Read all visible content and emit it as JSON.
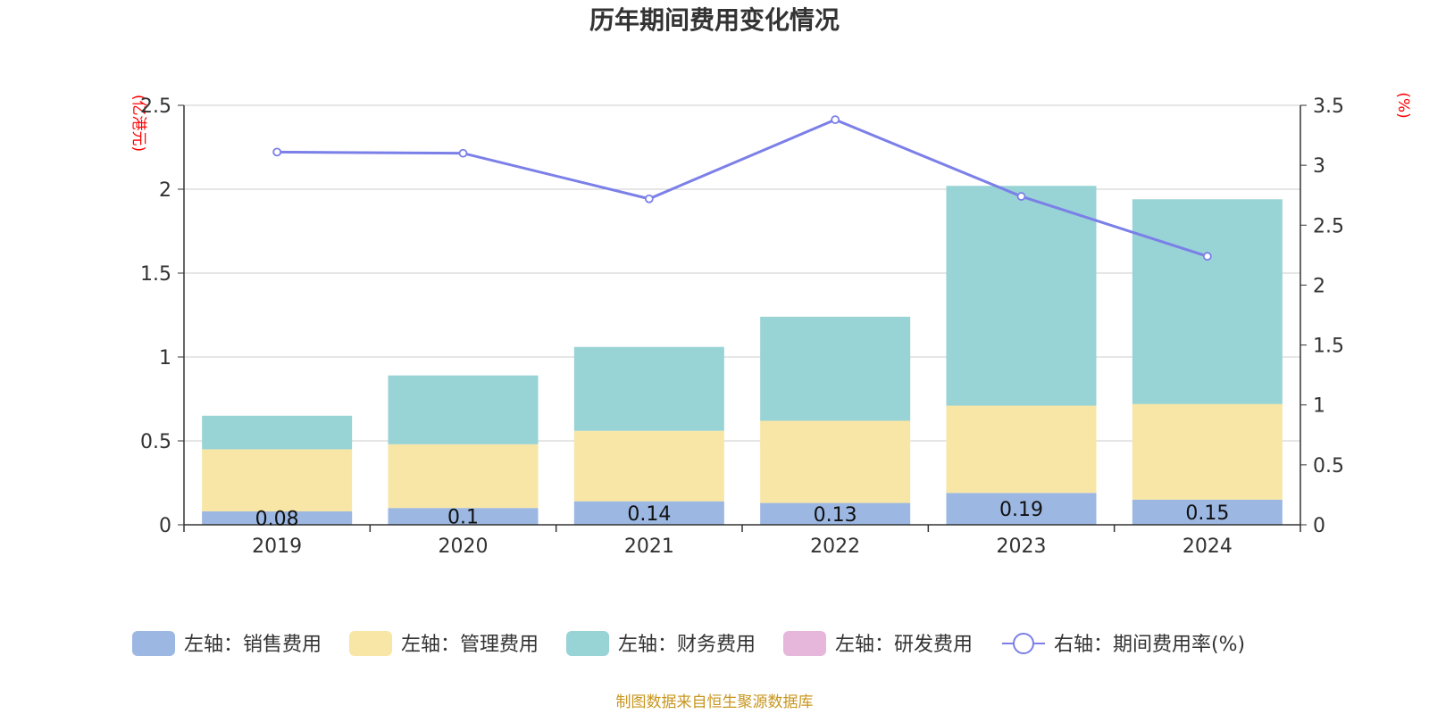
{
  "chart_data": {
    "type": "bar",
    "title": "历年期间费用变化情况",
    "left_axis_unit": "(亿港元)",
    "right_axis_unit": "(%)",
    "categories": [
      "2019",
      "2020",
      "2021",
      "2022",
      "2023",
      "2024"
    ],
    "ylim_left": [
      0,
      2.5
    ],
    "yticks_left": [
      "0",
      "0.5",
      "1",
      "1.5",
      "2",
      "2.5"
    ],
    "ylim_right": [
      0,
      3.5
    ],
    "yticks_right": [
      "0",
      "0.5",
      "1",
      "1.5",
      "2",
      "2.5",
      "3",
      "3.5"
    ],
    "grid": true,
    "legend_position": "bottom",
    "series": [
      {
        "name": "左轴：销售费用",
        "type": "bar",
        "axis": "left",
        "color": "#9bb7e2",
        "values": [
          0.08,
          0.1,
          0.14,
          0.13,
          0.19,
          0.15
        ],
        "labels": [
          "0.08",
          "0.1",
          "0.14",
          "0.13",
          "0.19",
          "0.15"
        ]
      },
      {
        "name": "左轴：管理费用",
        "type": "bar",
        "axis": "left",
        "color": "#f8e6a6",
        "values": [
          0.37,
          0.38,
          0.42,
          0.49,
          0.52,
          0.57
        ]
      },
      {
        "name": "左轴：财务费用",
        "type": "bar",
        "axis": "left",
        "color": "#98d3d5",
        "values": [
          0.2,
          0.41,
          0.5,
          0.62,
          1.31,
          1.22
        ]
      },
      {
        "name": "左轴：研发费用",
        "type": "bar",
        "axis": "left",
        "color": "#e6b7da",
        "values": [
          0,
          0,
          0,
          0,
          0,
          0
        ]
      },
      {
        "name": "右轴：期间费用率(%)",
        "type": "line",
        "axis": "right",
        "color": "#7b7fe8",
        "values": [
          3.11,
          3.1,
          2.72,
          3.38,
          2.74,
          2.24
        ]
      }
    ]
  },
  "footer": {
    "source": "制图数据来自恒生聚源数据库"
  }
}
